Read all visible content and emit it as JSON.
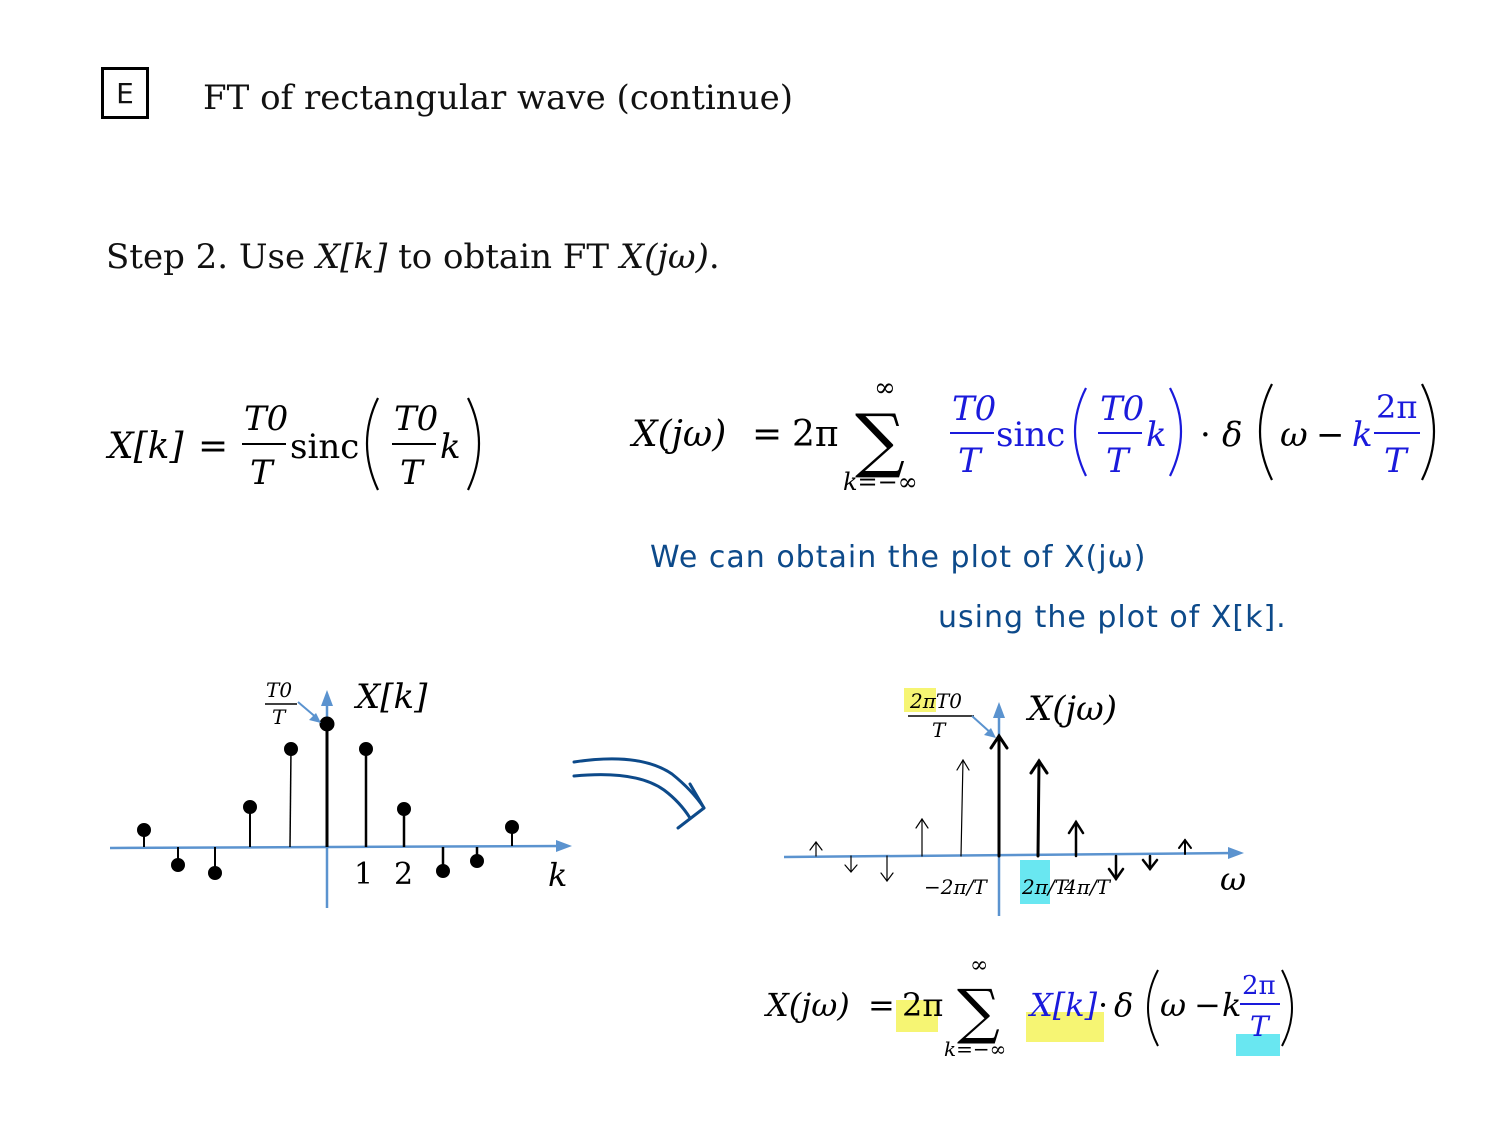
{
  "slide": {
    "badge": "E",
    "title": "FT of rectangular wave (continue)",
    "step_prefix": "Step 2. Use ",
    "step_xk": "X[k]",
    "step_middle": " to obtain FT ",
    "step_xjw": "X(jω)",
    "step_end": "."
  },
  "equations": {
    "xk_lhs": "X[k]",
    "xk_rhs_fn": "sinc",
    "xjw_lhs": "X(jω)",
    "two_pi": "2π",
    "sum_sym": "∑",
    "sum_top": "∞",
    "sum_bottom": "k=−∞",
    "T0": "T0",
    "T": "T",
    "k": "k",
    "omega": "ω",
    "delta": "δ",
    "bottom_xk": "X[k]"
  },
  "handwritten_note": {
    "line1": "We can obtain the plot of X(jω)",
    "line2": "using the plot of X[k]."
  },
  "plot_left": {
    "ylabel": "X[k]",
    "xlabel": "k",
    "peak_label_num": "T0",
    "peak_label_den": "T",
    "tick1": "1",
    "tick2": "2"
  },
  "plot_right": {
    "ylabel": "X(jω)",
    "xlabel": "ω",
    "peak_label_num": "2πT0",
    "peak_label_den": "T",
    "neg_tick": "−2π/T",
    "pos_tick": "2π/T",
    "pos_tick2": "4π/T"
  },
  "colors": {
    "blue_math": "#1a1adb",
    "axis": "#5b93cf",
    "handwriting": "#0d4a8a",
    "highlight_yellow": "#f4f35a",
    "highlight_cyan": "#4fe3ee"
  }
}
